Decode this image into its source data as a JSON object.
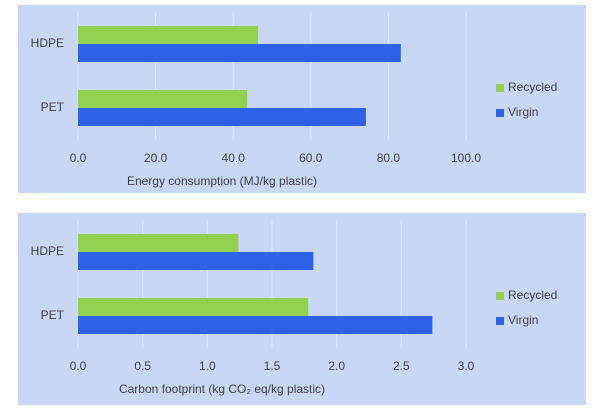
{
  "chart_data": [
    {
      "type": "bar",
      "orientation": "horizontal",
      "categories": [
        "HDPE",
        "PET"
      ],
      "series": [
        {
          "name": "Recycled",
          "color": "#92d050",
          "values": [
            46.4,
            43.6
          ]
        },
        {
          "name": "Virgin",
          "color": "#2f62e9",
          "values": [
            83.2,
            74.2
          ]
        }
      ],
      "xlim": [
        0,
        100
      ],
      "xticks": [
        {
          "value": 0,
          "label": "0.0"
        },
        {
          "value": 20,
          "label": "20.0"
        },
        {
          "value": 40,
          "label": "40.0"
        },
        {
          "value": 60,
          "label": "60.0"
        },
        {
          "value": 80,
          "label": "80.0"
        },
        {
          "value": 100,
          "label": "100.0"
        }
      ],
      "xlabel": "Energy consumption (MJ/kg plastic)",
      "grid": true,
      "legend": "right"
    },
    {
      "type": "bar",
      "orientation": "horizontal",
      "categories": [
        "HDPE",
        "PET"
      ],
      "series": [
        {
          "name": "Recycled",
          "color": "#92d050",
          "values": [
            1.24,
            1.78
          ]
        },
        {
          "name": "Virgin",
          "color": "#2f62e9",
          "values": [
            1.82,
            2.74
          ]
        }
      ],
      "xlim": [
        0,
        3
      ],
      "xticks": [
        {
          "value": 0,
          "label": "0.0"
        },
        {
          "value": 0.5,
          "label": "0.5"
        },
        {
          "value": 1,
          "label": "1.0"
        },
        {
          "value": 1.5,
          "label": "1.5"
        },
        {
          "value": 2,
          "label": "2.0"
        },
        {
          "value": 2.5,
          "label": "2.5"
        },
        {
          "value": 3,
          "label": "3.0"
        }
      ],
      "xlabel": "Carbon footprint (kg CO₂ eq/kg plastic)",
      "grid": true,
      "legend": "right"
    }
  ]
}
